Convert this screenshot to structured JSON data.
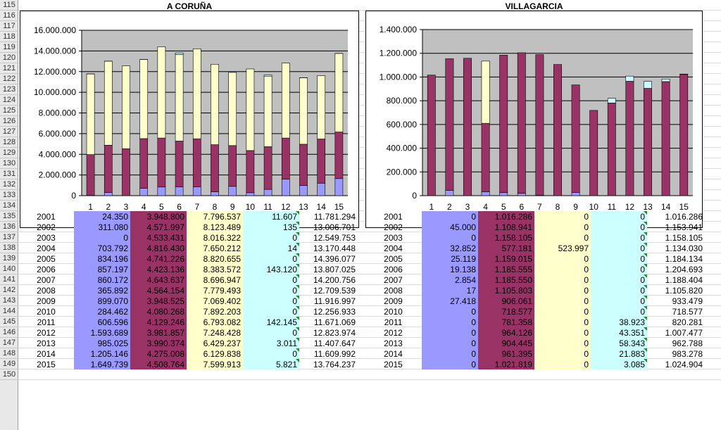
{
  "row_numbers": [
    "115",
    "116",
    "117",
    "118",
    "119",
    "120",
    "121",
    "122",
    "123",
    "124",
    "125",
    "126",
    "127",
    "128",
    "129",
    "130",
    "131",
    "132",
    "133",
    "134",
    "135",
    "136",
    "137",
    "138",
    "139",
    "140",
    "141",
    "142",
    "143",
    "144",
    "145",
    "146",
    "147",
    "148",
    "149",
    "150"
  ],
  "colors": {
    "blue": "#9999ff",
    "maroon": "#993366",
    "yellow": "#ffffcc",
    "cyan": "#ccffff",
    "plot_bg": "#c0c0c0"
  },
  "chart_data": [
    {
      "type": "bar",
      "stacked": true,
      "title": "A CORUÑA",
      "categories": [
        "1",
        "2",
        "3",
        "4",
        "5",
        "6",
        "7",
        "8",
        "9",
        "10",
        "11",
        "12",
        "13",
        "14",
        "15"
      ],
      "ylim": [
        0,
        16000000
      ],
      "yticks": [
        "0",
        "2.000.000",
        "4.000.000",
        "6.000.000",
        "8.000.000",
        "10.000.000",
        "12.000.000",
        "14.000.000",
        "16.000.000"
      ],
      "grid": true,
      "series": [
        {
          "color": "blue",
          "values": [
            24350,
            311080,
            0,
            703792,
            834196,
            857197,
            860172,
            365892,
            899070,
            284462,
            606596,
            1593689,
            985025,
            1205146,
            1649739
          ]
        },
        {
          "color": "maroon",
          "values": [
            3948800,
            4571997,
            4533431,
            4816430,
            4741226,
            4423136,
            4643637,
            4564154,
            3948525,
            4080268,
            4129246,
            3981857,
            3990374,
            4275008,
            4508764
          ]
        },
        {
          "color": "yellow",
          "values": [
            7796537,
            8123489,
            8016322,
            7650212,
            8820655,
            8383572,
            8696947,
            7779493,
            7069402,
            7892203,
            6793082,
            7248428,
            6429237,
            6129838,
            7599913
          ]
        },
        {
          "color": "cyan",
          "values": [
            11607,
            135,
            0,
            14,
            0,
            143120,
            0,
            0,
            0,
            0,
            142145,
            0,
            3011,
            0,
            5821
          ]
        }
      ]
    },
    {
      "type": "bar",
      "stacked": true,
      "title": "VILLAGARCIA",
      "categories": [
        "1",
        "2",
        "3",
        "4",
        "5",
        "6",
        "7",
        "8",
        "9",
        "10",
        "11",
        "12",
        "13",
        "14",
        "15"
      ],
      "ylim": [
        0,
        1400000
      ],
      "yticks": [
        "0",
        "200.000",
        "400.000",
        "600.000",
        "800.000",
        "1.000.000",
        "1.200.000",
        "1.400.000"
      ],
      "grid": true,
      "series": [
        {
          "color": "blue",
          "values": [
            0,
            45000,
            0,
            32852,
            25119,
            19138,
            2854,
            17,
            27418,
            0,
            0,
            0,
            0,
            0,
            0
          ]
        },
        {
          "color": "maroon",
          "values": [
            1016286,
            1108941,
            1158105,
            577181,
            1159015,
            1185555,
            1185550,
            1105803,
            906061,
            718577,
            781358,
            964126,
            904445,
            961395,
            1021819
          ]
        },
        {
          "color": "yellow",
          "values": [
            0,
            0,
            0,
            523997,
            0,
            0,
            0,
            0,
            0,
            0,
            0,
            0,
            0,
            0,
            0
          ]
        },
        {
          "color": "cyan",
          "values": [
            0,
            0,
            0,
            0,
            0,
            0,
            0,
            0,
            0,
            0,
            38923,
            43351,
            58343,
            21883,
            3085
          ]
        }
      ]
    }
  ],
  "table_left": {
    "rows": [
      [
        "2001",
        "24.350",
        "3.948.800",
        "7.796.537",
        "11.607",
        "11.781.294"
      ],
      [
        "2002",
        "311.080",
        "4.571.997",
        "8.123.489",
        "135",
        "13.006.701"
      ],
      [
        "2003",
        "0",
        "4.533.431",
        "8.016.322",
        "0",
        "12.549.753"
      ],
      [
        "2004",
        "703.792",
        "4.816.430",
        "7.650.212",
        "14",
        "13.170.448"
      ],
      [
        "2005",
        "834.196",
        "4.741.226",
        "8.820.655",
        "0",
        "14.396.077"
      ],
      [
        "2006",
        "857.197",
        "4.423.136",
        "8.383.572",
        "143.120",
        "13.807.025"
      ],
      [
        "2007",
        "860.172",
        "4.643.637",
        "8.696.947",
        "0",
        "14.200.756"
      ],
      [
        "2008",
        "365.892",
        "4.564.154",
        "7.779.493",
        "0",
        "12.709.539"
      ],
      [
        "2009",
        "899.070",
        "3.948.525",
        "7.069.402",
        "0",
        "11.916.997"
      ],
      [
        "2010",
        "284.462",
        "4.080.268",
        "7.892.203",
        "0",
        "12.256.933"
      ],
      [
        "2011",
        "606.596",
        "4.129.246",
        "6.793.082",
        "142.145",
        "11.671.069"
      ],
      [
        "2012",
        "1.593.689",
        "3.981.857",
        "7.248.428",
        "0",
        "12.823.974"
      ],
      [
        "2013",
        "985.025",
        "3.990.374",
        "6.429.237",
        "3.011",
        "11.407.647"
      ],
      [
        "2014",
        "1.205.146",
        "4.275.008",
        "6.129.838",
        "0",
        "11.609.992"
      ],
      [
        "2015",
        "1.649.739",
        "4.508.764",
        "7.599.913",
        "5.821",
        "13.764.237"
      ]
    ]
  },
  "table_right": {
    "rows": [
      [
        "2001",
        "0",
        "1.016.286",
        "0",
        "0",
        "1.016.286"
      ],
      [
        "2002",
        "45.000",
        "1.108.941",
        "0",
        "0",
        "1.153.941"
      ],
      [
        "2003",
        "0",
        "1.158.105",
        "0",
        "0",
        "1.158.105"
      ],
      [
        "2004",
        "32.852",
        "577.181",
        "523.997",
        "0",
        "1.134.030"
      ],
      [
        "2005",
        "25.119",
        "1.159.015",
        "0",
        "0",
        "1.184.134"
      ],
      [
        "2006",
        "19.138",
        "1.185.555",
        "0",
        "0",
        "1.204.693"
      ],
      [
        "2007",
        "2.854",
        "1.185.550",
        "0",
        "0",
        "1.188.404"
      ],
      [
        "2008",
        "17",
        "1.105.803",
        "0",
        "0",
        "1.105.820"
      ],
      [
        "2009",
        "27.418",
        "906.061",
        "0",
        "0",
        "933.479"
      ],
      [
        "2010",
        "0",
        "718.577",
        "0",
        "0",
        "718.577"
      ],
      [
        "2011",
        "0",
        "781.358",
        "0",
        "38.923",
        "820.281"
      ],
      [
        "2012",
        "0",
        "964.126",
        "0",
        "43.351",
        "1.007.477"
      ],
      [
        "2013",
        "0",
        "904.445",
        "0",
        "58.343",
        "962.788"
      ],
      [
        "2014",
        "0",
        "961.395",
        "0",
        "21.883",
        "983.278"
      ],
      [
        "2015",
        "0",
        "1.021.819",
        "0",
        "3.085",
        "1.024.904"
      ]
    ]
  }
}
